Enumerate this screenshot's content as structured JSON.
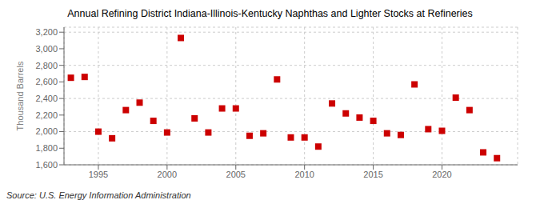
{
  "chart_data": {
    "type": "scatter",
    "title": "Annual Refining District Indiana-Illinois-Kentucky Naphthas and Lighter Stocks at Refineries",
    "ylabel": "Thousand Barrels",
    "source": "Source: U.S. Energy Information Administration",
    "x": [
      1993,
      1994,
      1995,
      1996,
      1997,
      1998,
      1999,
      2000,
      2001,
      2002,
      2003,
      2004,
      2005,
      2006,
      2007,
      2008,
      2009,
      2010,
      2011,
      2012,
      2013,
      2014,
      2015,
      2016,
      2017,
      2018,
      2019,
      2020,
      2021,
      2022,
      2023,
      2024
    ],
    "values": [
      2650,
      2660,
      2000,
      1920,
      2260,
      2350,
      2130,
      1990,
      3130,
      2160,
      1990,
      2280,
      2280,
      1950,
      1980,
      2630,
      1930,
      1930,
      1820,
      2340,
      2220,
      2170,
      2130,
      1980,
      1960,
      2570,
      2030,
      2010,
      2410,
      2260,
      1750,
      1680
    ],
    "color": "#cc0000",
    "marker": "square",
    "xlim": [
      1992.5,
      2025.5
    ],
    "xticks": [
      1995,
      2000,
      2005,
      2010,
      2015,
      2020
    ],
    "ylim": [
      1600,
      3260
    ],
    "yticks": [
      {
        "value": 1600,
        "label": "1,600"
      },
      {
        "value": 1800,
        "label": "1,800"
      },
      {
        "value": 2000,
        "label": "2,000"
      },
      {
        "value": 2200,
        "label": "2,200"
      },
      {
        "value": 2400,
        "label": "2,400"
      },
      {
        "value": 2600,
        "label": "2,600"
      },
      {
        "value": 2800,
        "label": "2,800"
      },
      {
        "value": 3000,
        "label": "3,000"
      },
      {
        "value": 3200,
        "label": "3,200"
      }
    ],
    "grid": true
  }
}
